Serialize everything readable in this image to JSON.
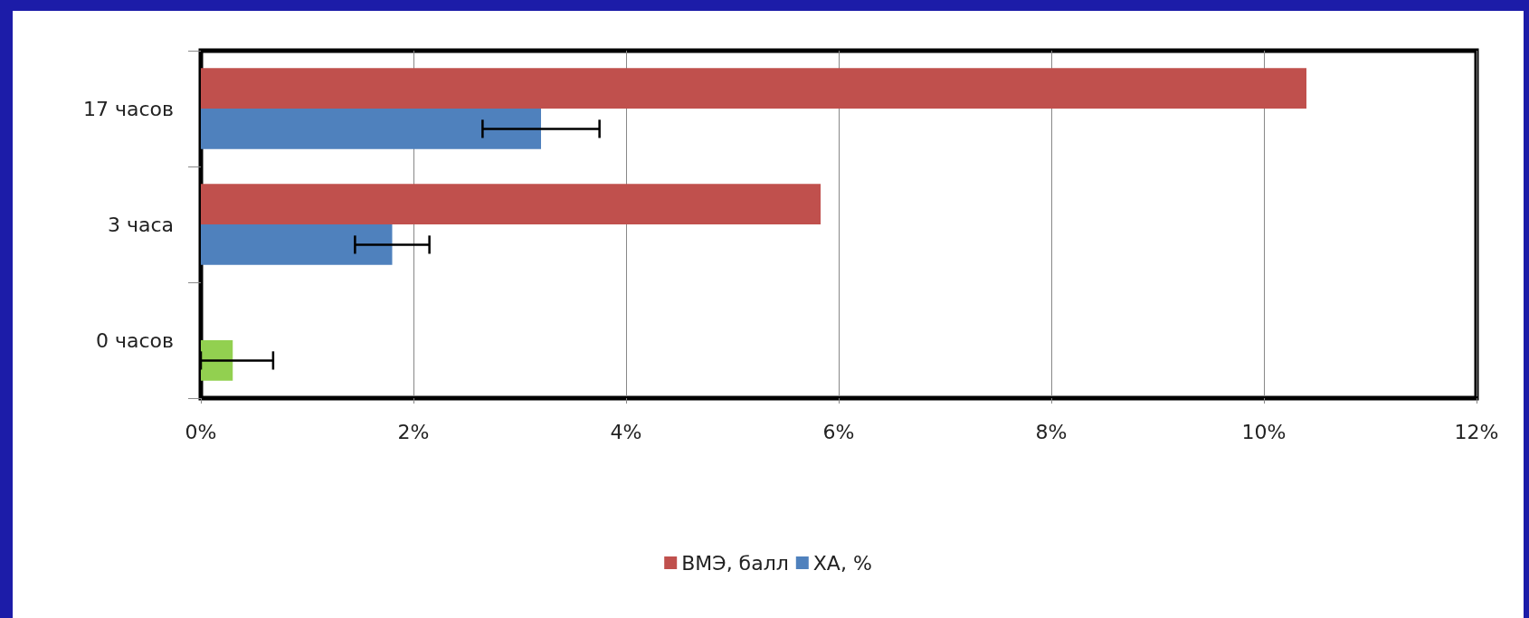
{
  "chart_data": {
    "type": "bar",
    "orientation": "horizontal",
    "categories": [
      "17 часов",
      "3 часа",
      "0 часов"
    ],
    "series": [
      {
        "name": "ВМЭ, балл",
        "color": "#c0504d",
        "values": [
          10.4,
          5.83,
          null
        ]
      },
      {
        "name": "ХА, %",
        "color": "#4f81bd",
        "colors": [
          "#4f81bd",
          "#4f81bd",
          "#92d050"
        ],
        "values": [
          3.2,
          1.8,
          0.3
        ],
        "errors": [
          0.55,
          0.35,
          [
            0,
            0.68
          ]
        ]
      }
    ],
    "xlim": [
      0,
      12
    ],
    "xticks": [
      {
        "value": 0,
        "label": "0%"
      },
      {
        "value": 2,
        "label": "2%"
      },
      {
        "value": 4,
        "label": "4%"
      },
      {
        "value": 6,
        "label": "6%"
      },
      {
        "value": 8,
        "label": "8%"
      },
      {
        "value": 10,
        "label": "10%"
      },
      {
        "value": 12,
        "label": "12%"
      }
    ],
    "grid": "x",
    "legend": "bottom"
  }
}
